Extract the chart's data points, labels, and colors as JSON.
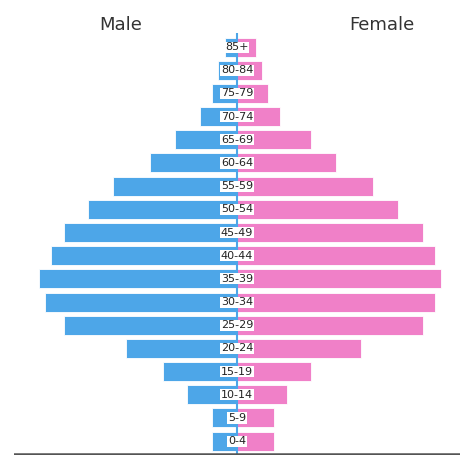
{
  "age_groups": [
    "0-4",
    "5-9",
    "10-14",
    "15-19",
    "20-24",
    "25-29",
    "30-34",
    "35-39",
    "40-44",
    "45-49",
    "50-54",
    "55-59",
    "60-64",
    "65-69",
    "70-74",
    "75-79",
    "80-84",
    "85+"
  ],
  "male_values": [
    2,
    2,
    4,
    6,
    9,
    14,
    15.5,
    16,
    15,
    14,
    12,
    10,
    7,
    5,
    3,
    2,
    1.5,
    1
  ],
  "female_values": [
    3,
    3,
    4,
    6,
    10,
    15,
    16,
    16.5,
    16,
    15,
    13,
    11,
    8,
    6,
    3.5,
    2.5,
    2,
    1.5
  ],
  "male_color": "#4da6e8",
  "female_color": "#f080c8",
  "male_label": "Male",
  "female_label": "Female",
  "background_color": "#ffffff",
  "center_line_color": "#4da6e8",
  "bar_height": 0.82,
  "max_val": 18,
  "label_fontsize": 13,
  "tick_fontsize": 8
}
